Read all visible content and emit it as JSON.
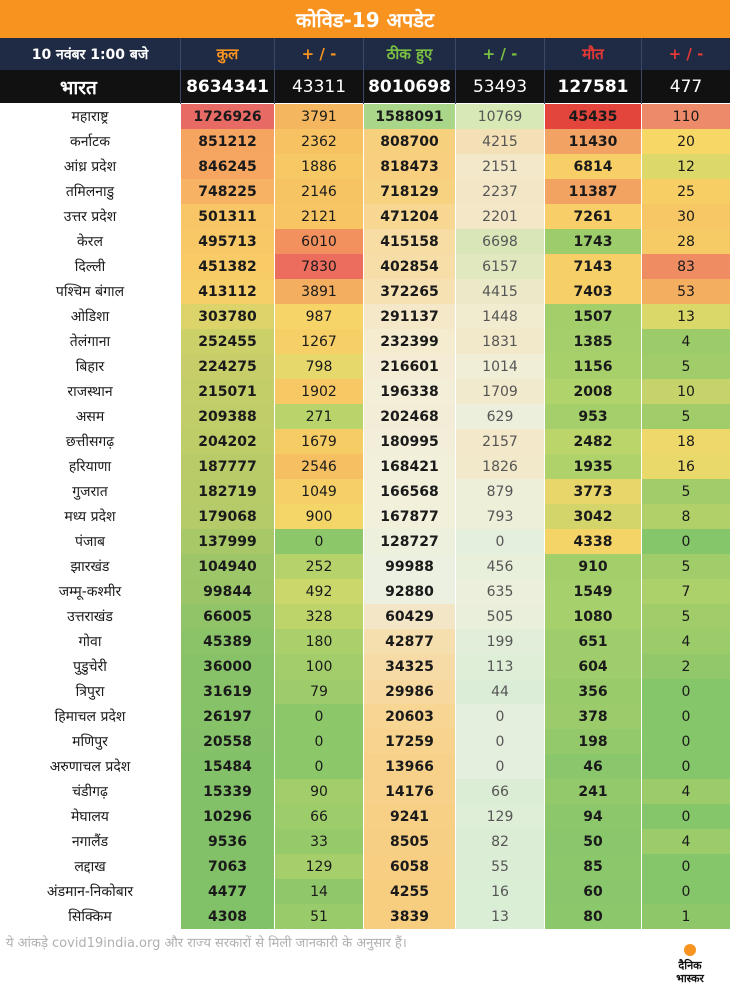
{
  "title": "कोविड-19 अपडेट",
  "header": {
    "date": "10 नवंबर 1:00 बजे",
    "cols": [
      {
        "label": "कुल",
        "color": "#f7931e"
      },
      {
        "label": "+ / -",
        "color": "#f7931e"
      },
      {
        "label": "ठीक हुए",
        "color": "#7ac143"
      },
      {
        "label": "+ / -",
        "color": "#7ac143"
      },
      {
        "label": "मौत",
        "color": "#e53935"
      },
      {
        "label": "+ / -",
        "color": "#e53935"
      }
    ]
  },
  "india": {
    "name": "भारत",
    "values": [
      "8634341",
      "43311",
      "8010698",
      "53493",
      "127581",
      "477"
    ]
  },
  "states": [
    {
      "name": "महाराष्ट्र",
      "values": [
        "1726926",
        "3791",
        "1588091",
        "10769",
        "45435",
        "110"
      ],
      "colors": [
        "#e86a64",
        "#f4b65e",
        "#a9d688",
        "#d7e9b5",
        "#e3443c",
        "#ec8a6a"
      ]
    },
    {
      "name": "कर्नाटक",
      "values": [
        "851212",
        "2362",
        "808700",
        "4215",
        "11430",
        "20"
      ],
      "colors": [
        "#f6a560",
        "#f7c262",
        "#f7d07e",
        "#f4e0b6",
        "#f2a262",
        "#f7d765"
      ]
    },
    {
      "name": "आंध्र प्रदेश",
      "values": [
        "846245",
        "1886",
        "818473",
        "2151",
        "6814",
        "12"
      ],
      "colors": [
        "#f6a660",
        "#f6c964",
        "#f7cf7e",
        "#f3e8c9",
        "#f7cf66",
        "#ddd86a"
      ]
    },
    {
      "name": "तमिलनाडु",
      "values": [
        "748225",
        "2146",
        "718129",
        "2237",
        "11387",
        "25"
      ],
      "colors": [
        "#f7b263",
        "#f6c463",
        "#f7d281",
        "#f3e6c6",
        "#f2a362",
        "#f6ce64"
      ]
    },
    {
      "name": "उत्तर प्रदेश",
      "values": [
        "501311",
        "2121",
        "471204",
        "2201",
        "7261",
        "30"
      ],
      "colors": [
        "#f8c666",
        "#f7c563",
        "#f7d792",
        "#f3e7c8",
        "#f7ce67",
        "#f6c764"
      ]
    },
    {
      "name": "केरल",
      "values": [
        "495713",
        "6010",
        "415158",
        "6698",
        "1743",
        "28"
      ],
      "colors": [
        "#f8c867",
        "#f2905e",
        "#f7dca4",
        "#d9e6b8",
        "#9dcc6a",
        "#f6ca64"
      ]
    },
    {
      "name": "दिल्ली",
      "values": [
        "451382",
        "7830",
        "402854",
        "6157",
        "7143",
        "83"
      ],
      "colors": [
        "#f8cb67",
        "#ec6c5e",
        "#f7dea8",
        "#e1e8c0",
        "#f7cf67",
        "#ef8c62"
      ]
    },
    {
      "name": "पश्चिम बंगाल",
      "values": [
        "413112",
        "3891",
        "372265",
        "4415",
        "7403",
        "53"
      ],
      "colors": [
        "#f7cf68",
        "#f4ae60",
        "#f6e1b2",
        "#ebe9c7",
        "#f7cf67",
        "#f4ae60"
      ]
    },
    {
      "name": "ओडिशा",
      "values": [
        "303780",
        "987",
        "291137",
        "1448",
        "1507",
        "13"
      ],
      "colors": [
        "#dcd36a",
        "#f7d468",
        "#f5e8c8",
        "#f1ecd0",
        "#a3cf6b",
        "#d9d869"
      ]
    },
    {
      "name": "तेलंगाना",
      "values": [
        "252455",
        "1267",
        "232399",
        "1831",
        "1385",
        "4"
      ],
      "colors": [
        "#ccd069",
        "#f7cf67",
        "#f5ebcf",
        "#f2e9cb",
        "#a5cf6b",
        "#9ccb6a"
      ]
    },
    {
      "name": "बिहार",
      "values": [
        "224275",
        "798",
        "216601",
        "1014",
        "1156",
        "5"
      ],
      "colors": [
        "#c7ce69",
        "#e6d86a",
        "#f4ecd4",
        "#f0eed7",
        "#a7d06b",
        "#a0cd6a"
      ]
    },
    {
      "name": "राजस्थान",
      "values": [
        "215071",
        "1902",
        "196338",
        "1709",
        "2008",
        "10"
      ],
      "colors": [
        "#c3ce69",
        "#f6c964",
        "#f3eed7",
        "#f2eacc",
        "#b1d36b",
        "#c5d36a"
      ]
    },
    {
      "name": "असम",
      "values": [
        "209388",
        "271",
        "202468",
        "629",
        "953",
        "5"
      ],
      "colors": [
        "#c1cd69",
        "#b9d46b",
        "#f3edd7",
        "#ebefdb",
        "#a4cf6b",
        "#a0cd6a"
      ]
    },
    {
      "name": "छत्तीसगढ़",
      "values": [
        "204202",
        "1679",
        "180995",
        "2157",
        "2482",
        "18"
      ],
      "colors": [
        "#bfcd69",
        "#f6cc65",
        "#f3eed9",
        "#f3e8c9",
        "#bcd56b",
        "#eed86a"
      ]
    },
    {
      "name": "हरियाणा",
      "values": [
        "187777",
        "2546",
        "168421",
        "1826",
        "1935",
        "16"
      ],
      "colors": [
        "#b9cb69",
        "#f6bf62",
        "#f2efdb",
        "#f2e9cb",
        "#afd26b",
        "#e9d86a"
      ]
    },
    {
      "name": "गुजरात",
      "values": [
        "182719",
        "1049",
        "166568",
        "879",
        "3773",
        "5"
      ],
      "colors": [
        "#b7cb69",
        "#f6d067",
        "#f2efdb",
        "#eeefd9",
        "#e8d66a",
        "#a0cd6a"
      ]
    },
    {
      "name": "मध्य प्रदेश",
      "values": [
        "179068",
        "900",
        "167877",
        "793",
        "3042",
        "8"
      ],
      "colors": [
        "#b5cb69",
        "#f3d568",
        "#f2efdb",
        "#edefd9",
        "#d3d56a",
        "#b1d06a"
      ]
    },
    {
      "name": "पंजाब",
      "values": [
        "137999",
        "0",
        "128727",
        "0",
        "4338",
        "0"
      ],
      "colors": [
        "#a8c868",
        "#8cc869",
        "#eef0de",
        "#e5efdd",
        "#f4d467",
        "#86c66a"
      ]
    },
    {
      "name": "झारखंड",
      "values": [
        "104940",
        "252",
        "99988",
        "456",
        "910",
        "5"
      ],
      "colors": [
        "#9dc668",
        "#b6d36b",
        "#ebf0e0",
        "#e8efdb",
        "#a3cf6b",
        "#a0cd6a"
      ]
    },
    {
      "name": "जम्मू-कश्मीर",
      "values": [
        "99844",
        "492",
        "92880",
        "635",
        "1549",
        "7"
      ],
      "colors": [
        "#9bc668",
        "#cbd76b",
        "#ebf0e0",
        "#ebefdb",
        "#a6d06b",
        "#acd06a"
      ]
    },
    {
      "name": "उत्तराखंड",
      "values": [
        "66005",
        "328",
        "60429",
        "505",
        "1080",
        "5"
      ],
      "colors": [
        "#91c468",
        "#bdd46b",
        "#f2e6c6",
        "#e9efdb",
        "#a6d06b",
        "#a0cd6a"
      ]
    },
    {
      "name": "गोवा",
      "values": [
        "45389",
        "180",
        "42877",
        "199",
        "651",
        "4"
      ],
      "colors": [
        "#8bc368",
        "#abd06b",
        "#f5dfae",
        "#e2eed9",
        "#9fcd6b",
        "#9ccb6a"
      ]
    },
    {
      "name": "पुडुचेरी",
      "values": [
        "36000",
        "100",
        "34325",
        "113",
        "604",
        "2"
      ],
      "colors": [
        "#88c268",
        "#a3cd6b",
        "#f6dba6",
        "#dfeed7",
        "#9fcd6b",
        "#92c86a"
      ]
    },
    {
      "name": "त्रिपुरा",
      "values": [
        "31619",
        "79",
        "29986",
        "44",
        "356",
        "0"
      ],
      "colors": [
        "#87c268",
        "#9fcc6b",
        "#f7d99f",
        "#dbedd6",
        "#9acb6b",
        "#86c66a"
      ]
    },
    {
      "name": "हिमाचल प्रदेश",
      "values": [
        "26197",
        "0",
        "20603",
        "0",
        "378",
        "0"
      ],
      "colors": [
        "#85c268",
        "#8cc869",
        "#f7d593",
        "#e5efdd",
        "#9bcb6b",
        "#86c66a"
      ]
    },
    {
      "name": "मणिपुर",
      "values": [
        "20558",
        "0",
        "17259",
        "0",
        "198",
        "0"
      ],
      "colors": [
        "#84c168",
        "#8cc869",
        "#f7d38d",
        "#e5efdd",
        "#93c96b",
        "#86c66a"
      ]
    },
    {
      "name": "अरुणाचल प्रदेश",
      "values": [
        "15484",
        "0",
        "13966",
        "0",
        "46",
        "0"
      ],
      "colors": [
        "#83c168",
        "#8cc869",
        "#f7d18a",
        "#e5efdd",
        "#8ac66b",
        "#86c66a"
      ]
    },
    {
      "name": "चंडीगढ़",
      "values": [
        "15339",
        "90",
        "14176",
        "66",
        "241",
        "4"
      ],
      "colors": [
        "#83c168",
        "#a2cd6b",
        "#f7d18a",
        "#dcedd6",
        "#94c96b",
        "#9ccb6a"
      ]
    },
    {
      "name": "मेघालय",
      "values": [
        "10296",
        "66",
        "9241",
        "129",
        "94",
        "0"
      ],
      "colors": [
        "#82c168",
        "#9dcc6b",
        "#f7cf85",
        "#dfeed7",
        "#8cc76b",
        "#86c66a"
      ]
    },
    {
      "name": "नगालैंड",
      "values": [
        "9536",
        "33",
        "8505",
        "82",
        "50",
        "4"
      ],
      "colors": [
        "#82c168",
        "#96c96a",
        "#f7cf84",
        "#dced d6",
        "#8ac66b",
        "#9ccb6a"
      ]
    },
    {
      "name": "लद्दाख",
      "values": [
        "7063",
        "129",
        "6058",
        "55",
        "85",
        "0"
      ],
      "colors": [
        "#82c168",
        "#a6ce6b",
        "#f7ce82",
        "#dcedd6",
        "#8bc76b",
        "#86c66a"
      ]
    },
    {
      "name": "अंडमान-निकोबार",
      "values": [
        "4477",
        "14",
        "4255",
        "16",
        "60",
        "0"
      ],
      "colors": [
        "#81c168",
        "#90c76a",
        "#f7cd80",
        "#daedd5",
        "#8ac66b",
        "#86c66a"
      ]
    },
    {
      "name": "सिक्किम",
      "values": [
        "4308",
        "51",
        "3839",
        "13",
        "80",
        "1"
      ],
      "colors": [
        "#81c168",
        "#9acb6a",
        "#f7cd80",
        "#daedd5",
        "#8bc76b",
        "#8dc76a"
      ]
    }
  ],
  "footer": "ये आंकड़े covid19india.org और राज्य सरकारों से मिली जानकारी के अनुसार हैं।",
  "logo": {
    "line1": "दैनिक",
    "line2": "भास्कर",
    "sun_color": "#f7931e"
  }
}
